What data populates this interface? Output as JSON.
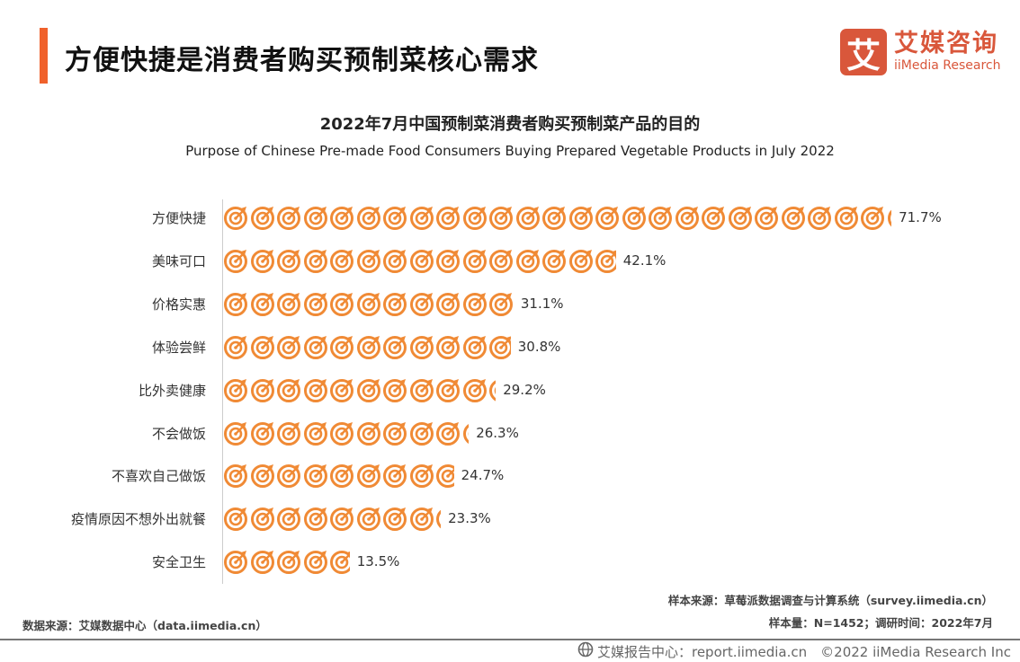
{
  "header": {
    "title": "方便快捷是消费者购买预制菜核心需求",
    "logo_mark": "艾",
    "logo_cn": "艾媒咨询",
    "logo_en": "iiMedia Research"
  },
  "colors": {
    "accent": "#f0612b",
    "icon": "#f08a35",
    "logo": "#d9573b"
  },
  "chart_data": {
    "type": "bar",
    "title": "2022年7月中国预制菜消费者购买预制菜产品的目的",
    "subtitle": "Purpose of Chinese Pre-made Food Consumers Buying Prepared Vegetable Products in July 2022",
    "categories": [
      "方便快捷",
      "美味可口",
      "价格实惠",
      "体验尝鲜",
      "比外卖健康",
      "不会做饭",
      "不喜欢自己做饭",
      "疫情原因不想外出就餐",
      "安全卫生"
    ],
    "values": [
      71.7,
      42.1,
      31.1,
      30.8,
      29.2,
      26.3,
      24.7,
      23.3,
      13.5
    ],
    "labels": [
      "71.7%",
      "42.1%",
      "31.1%",
      "30.8%",
      "29.2%",
      "26.3%",
      "24.7%",
      "23.3%",
      "13.5%"
    ],
    "unit": "%",
    "mark": "target-icon"
  },
  "footer": {
    "sample_source": "样本来源：草莓派数据调查与计算系统（survey.iimedia.cn）",
    "sample_info": "样本量：N=1452；调研时间：2022年7月",
    "data_source": "数据来源：艾媒数据中心（data.iimedia.cn）",
    "report": "艾媒报告中心：report.iimedia.cn　©2022  iiMedia Research  Inc"
  }
}
